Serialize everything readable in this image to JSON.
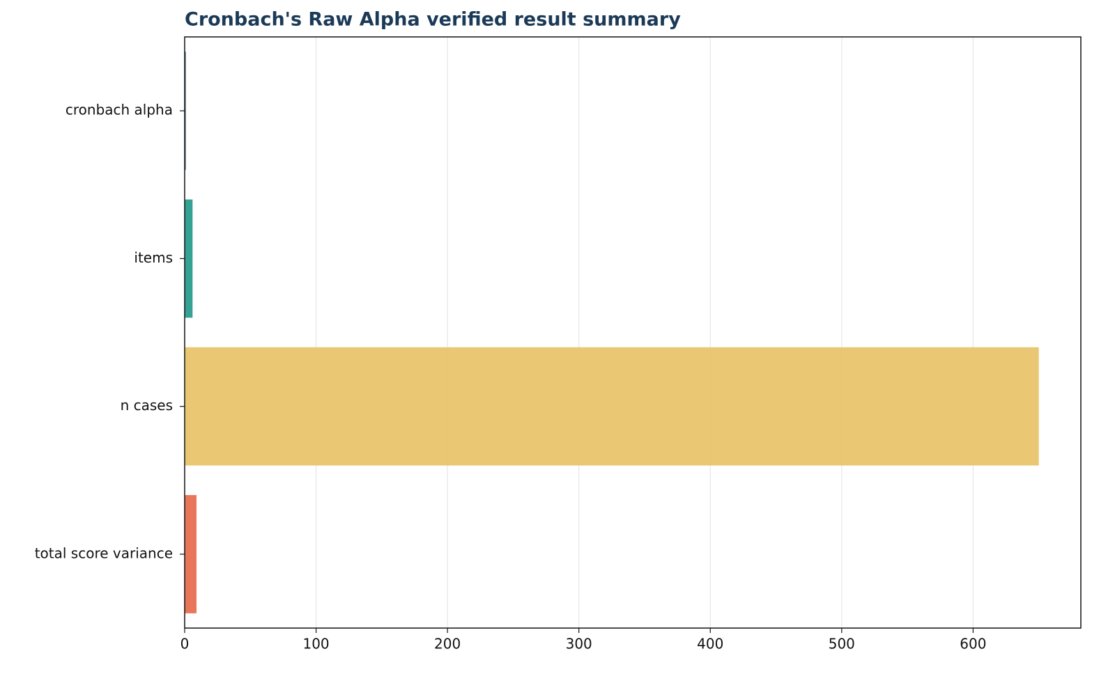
{
  "chart_data": {
    "type": "barh",
    "title": "Cronbach's Raw Alpha verified result summary",
    "categories": [
      "cronbach alpha",
      "items",
      "n cases",
      "total score variance"
    ],
    "values": [
      0.8,
      6,
      650,
      9
    ],
    "colors": [
      "#264653",
      "#2a9d8f",
      "#e9c46a",
      "#e76f51"
    ],
    "xlim": [
      0,
      682
    ],
    "xticks": [
      0,
      100,
      200,
      300,
      400,
      500,
      600
    ],
    "grid": true
  }
}
